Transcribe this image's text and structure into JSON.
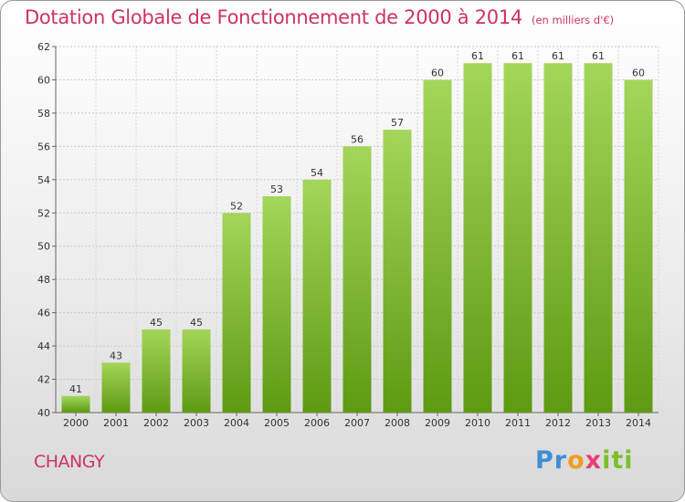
{
  "header": {
    "title": "Dotation Globale de Fonctionnement de 2000 à 2014",
    "subtitle": "(en milliers d'€)"
  },
  "place": "CHANGY",
  "logo": {
    "text": "Proxiti",
    "colors": [
      "#3e8ed8",
      "#f29b1d",
      "#e83f6f",
      "#7bbf2a"
    ]
  },
  "colors": {
    "bar_light": "#9ed24f",
    "bar_dark": "#5e9a12",
    "title": "#cc3366"
  },
  "chart_data": {
    "type": "bar",
    "title": "Dotation Globale de Fonctionnement de 2000 à 2014",
    "subtitle": "(en milliers d'€)",
    "xlabel": "",
    "ylabel": "",
    "categories": [
      "2000",
      "2001",
      "2002",
      "2003",
      "2004",
      "2005",
      "2006",
      "2007",
      "2008",
      "2009",
      "2010",
      "2011",
      "2012",
      "2013",
      "2014"
    ],
    "values": [
      41,
      43,
      45,
      45,
      52,
      53,
      54,
      56,
      57,
      60,
      61,
      61,
      61,
      61,
      60
    ],
    "ylim": [
      40,
      62
    ],
    "yticks": [
      40,
      42,
      44,
      46,
      48,
      50,
      52,
      54,
      56,
      58,
      60,
      62
    ],
    "grid": true,
    "legend": "none"
  }
}
